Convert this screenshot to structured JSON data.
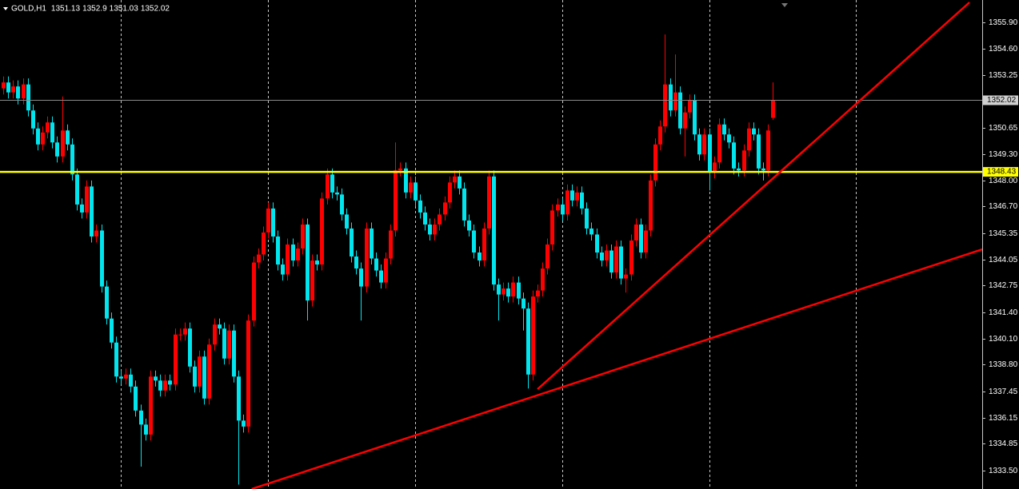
{
  "chart_data": {
    "type": "candlestick",
    "symbol": "GOLD,H1",
    "open": [
      1352.6,
      1352.9,
      1352.4,
      1352.7,
      1352.1,
      1352.8,
      1351.5,
      1350.6,
      1349.8,
      1350.4,
      1350.9,
      1349.9,
      1349.2,
      1350.5,
      1349.8,
      1348.3,
      1346.8,
      1346.4,
      1347.7,
      1345.2,
      1345.5,
      1342.7,
      1341.1,
      1339.9,
      1338.2,
      1338.1,
      1338.3,
      1337.7,
      1336.5,
      1335.8,
      1335.3,
      1338.2,
      1338.0,
      1337.5,
      1338.0,
      1337.8,
      1340.3,
      1340.3,
      1340.6,
      1338.7,
      1337.7,
      1339.2,
      1337.1,
      1339.8,
      1340.8,
      1340.6,
      1339.1,
      1340.5,
      1338.2,
      1336.0,
      1335.7,
      1341.0,
      1343.9,
      1344.3,
      1345.4,
      1346.6,
      1345.2,
      1343.8,
      1343.3,
      1344.8,
      1344.0,
      1344.6,
      1345.8,
      1342.0,
      1344.0,
      1343.8,
      1347.1,
      1348.3,
      1347.4,
      1347.3,
      1346.3,
      1345.6,
      1344.2,
      1343.6,
      1342.7,
      1345.6,
      1344.1,
      1343.5,
      1342.9,
      1344.1,
      1345.5,
      1348.5,
      1348.6,
      1347.4,
      1347.9,
      1347.0,
      1346.4,
      1345.8,
      1345.3,
      1345.8,
      1346.3,
      1346.9,
      1347.9,
      1348.2,
      1347.6,
      1346.0,
      1345.5,
      1344.4,
      1344.0,
      1345.6,
      1348.2,
      1342.8,
      1342.3,
      1342.6,
      1342.2,
      1342.9,
      1342.1,
      1341.6,
      1338.3,
      1342.2,
      1342.5,
      1343.6,
      1344.8,
      1346.5,
      1346.8,
      1346.3,
      1347.5,
      1347.0,
      1347.4,
      1346.6,
      1345.6,
      1345.3,
      1344.4,
      1344.0,
      1344.5,
      1343.4,
      1344.7,
      1343.1,
      1343.3,
      1345.0,
      1345.8,
      1344.4,
      1345.5,
      1348.0,
      1349.8,
      1350.7,
      1352.8,
      1351.5,
      1352.4,
      1350.6,
      1351.4,
      1352.0,
      1350.3,
      1349.3,
      1350.3,
      1348.4,
      1348.9,
      1350.8,
      1350.3,
      1349.9,
      1348.6,
      1348.5,
      1349.5,
      1350.6,
      1350.3,
      1348.6,
      1348.5,
      1351.13
    ],
    "high": [
      1353.2,
      1353.2,
      1353.0,
      1353.0,
      1353.1,
      1353.1,
      1351.8,
      1350.9,
      1350.7,
      1351.2,
      1351.2,
      1350.2,
      1352.2,
      1350.8,
      1350.1,
      1348.6,
      1347.1,
      1348.0,
      1348.0,
      1345.8,
      1345.8,
      1343.0,
      1341.4,
      1340.2,
      1338.5,
      1338.6,
      1338.6,
      1338.0,
      1336.8,
      1336.1,
      1338.5,
      1338.5,
      1338.3,
      1338.3,
      1338.3,
      1340.6,
      1340.6,
      1340.9,
      1340.9,
      1339.0,
      1339.5,
      1339.5,
      1340.1,
      1341.1,
      1341.1,
      1340.9,
      1340.8,
      1340.8,
      1338.5,
      1336.3,
      1341.3,
      1344.2,
      1344.6,
      1345.7,
      1346.9,
      1346.9,
      1345.5,
      1344.1,
      1345.1,
      1345.1,
      1344.9,
      1346.1,
      1346.1,
      1344.3,
      1344.3,
      1347.4,
      1348.6,
      1348.6,
      1347.7,
      1347.6,
      1346.6,
      1345.9,
      1344.5,
      1343.9,
      1345.9,
      1345.9,
      1344.4,
      1343.8,
      1344.4,
      1345.8,
      1349.9,
      1348.9,
      1348.9,
      1348.2,
      1348.2,
      1347.3,
      1346.7,
      1346.1,
      1346.1,
      1346.6,
      1347.2,
      1348.2,
      1348.5,
      1348.5,
      1347.9,
      1346.3,
      1345.8,
      1344.7,
      1345.9,
      1348.5,
      1348.5,
      1343.1,
      1342.9,
      1342.9,
      1343.2,
      1343.2,
      1342.4,
      1341.9,
      1342.5,
      1342.8,
      1343.9,
      1345.1,
      1346.8,
      1347.1,
      1347.1,
      1347.8,
      1347.8,
      1347.7,
      1347.7,
      1346.9,
      1345.9,
      1345.6,
      1344.7,
      1344.8,
      1344.8,
      1345.0,
      1345.0,
      1343.6,
      1345.3,
      1346.1,
      1346.1,
      1345.8,
      1348.3,
      1350.1,
      1351.0,
      1355.3,
      1353.1,
      1354.3,
      1352.7,
      1351.7,
      1352.3,
      1352.3,
      1350.6,
      1350.6,
      1350.6,
      1349.2,
      1351.1,
      1351.1,
      1350.6,
      1350.2,
      1348.9,
      1349.8,
      1350.9,
      1350.9,
      1350.6,
      1348.9,
      1350.8,
      1352.9
    ],
    "low": [
      1352.3,
      1352.1,
      1352.1,
      1351.8,
      1351.8,
      1351.2,
      1350.3,
      1349.5,
      1349.5,
      1350.1,
      1349.6,
      1348.9,
      1348.9,
      1349.5,
      1348.0,
      1346.5,
      1346.1,
      1346.1,
      1344.9,
      1344.9,
      1342.4,
      1340.8,
      1339.6,
      1337.9,
      1337.8,
      1337.8,
      1337.4,
      1336.2,
      1333.7,
      1335.0,
      1335.0,
      1337.7,
      1337.2,
      1337.2,
      1337.5,
      1337.5,
      1340.0,
      1340.0,
      1338.4,
      1337.4,
      1337.4,
      1336.8,
      1336.8,
      1339.5,
      1340.3,
      1338.8,
      1338.8,
      1337.9,
      1332.8,
      1335.4,
      1335.4,
      1340.7,
      1343.6,
      1344.0,
      1345.1,
      1344.9,
      1343.5,
      1343.0,
      1343.0,
      1343.7,
      1343.7,
      1344.3,
      1341.0,
      1341.7,
      1343.5,
      1343.5,
      1346.8,
      1347.1,
      1347.0,
      1346.0,
      1345.3,
      1343.9,
      1343.3,
      1341.0,
      1342.4,
      1343.8,
      1343.2,
      1342.6,
      1342.6,
      1343.8,
      1345.2,
      1348.2,
      1347.1,
      1347.1,
      1346.7,
      1346.1,
      1345.5,
      1345.0,
      1345.0,
      1345.5,
      1346.0,
      1346.6,
      1347.6,
      1347.3,
      1345.7,
      1345.2,
      1344.1,
      1343.7,
      1343.7,
      1345.3,
      1342.5,
      1341.0,
      1342.0,
      1341.9,
      1341.9,
      1341.8,
      1340.5,
      1337.6,
      1338.0,
      1341.9,
      1342.2,
      1343.3,
      1344.5,
      1346.2,
      1346.0,
      1346.0,
      1346.7,
      1346.7,
      1346.3,
      1345.3,
      1345.0,
      1344.1,
      1343.7,
      1343.7,
      1343.1,
      1343.1,
      1342.8,
      1342.4,
      1343.0,
      1344.7,
      1344.1,
      1344.1,
      1345.2,
      1347.7,
      1349.5,
      1350.4,
      1351.2,
      1351.2,
      1350.3,
      1349.2,
      1351.1,
      1350.0,
      1349.0,
      1349.0,
      1347.5,
      1348.1,
      1348.6,
      1350.0,
      1349.6,
      1348.3,
      1348.2,
      1348.2,
      1349.2,
      1350.0,
      1348.3,
      1348.0,
      1348.2,
      1351.03
    ],
    "close": [
      1352.9,
      1352.4,
      1352.7,
      1352.1,
      1352.8,
      1351.5,
      1350.6,
      1349.8,
      1350.4,
      1350.9,
      1349.9,
      1349.2,
      1350.5,
      1349.8,
      1348.3,
      1346.8,
      1346.4,
      1347.7,
      1345.2,
      1345.5,
      1342.7,
      1341.1,
      1339.9,
      1338.2,
      1338.1,
      1338.3,
      1337.7,
      1336.5,
      1335.8,
      1335.3,
      1338.2,
      1338.0,
      1337.5,
      1338.0,
      1337.8,
      1340.3,
      1340.3,
      1340.6,
      1338.7,
      1337.7,
      1339.2,
      1337.1,
      1339.8,
      1340.8,
      1340.6,
      1339.1,
      1340.5,
      1338.2,
      1336.0,
      1335.7,
      1341.0,
      1343.9,
      1344.3,
      1345.4,
      1346.6,
      1345.2,
      1343.8,
      1343.3,
      1344.8,
      1344.0,
      1344.6,
      1345.8,
      1342.0,
      1344.0,
      1343.8,
      1347.1,
      1348.3,
      1347.4,
      1347.3,
      1346.3,
      1345.6,
      1344.2,
      1343.6,
      1342.7,
      1345.6,
      1344.1,
      1343.5,
      1342.9,
      1344.1,
      1345.5,
      1348.5,
      1348.6,
      1347.4,
      1347.9,
      1347.0,
      1346.4,
      1345.8,
      1345.3,
      1345.8,
      1346.3,
      1346.9,
      1347.9,
      1348.2,
      1347.6,
      1346.0,
      1345.5,
      1344.4,
      1344.0,
      1345.6,
      1348.2,
      1342.8,
      1342.3,
      1342.6,
      1342.2,
      1342.9,
      1342.1,
      1341.6,
      1338.3,
      1342.2,
      1342.5,
      1343.6,
      1344.8,
      1346.5,
      1346.8,
      1346.3,
      1347.5,
      1347.0,
      1347.4,
      1346.6,
      1345.6,
      1345.3,
      1344.4,
      1344.0,
      1344.5,
      1343.4,
      1344.7,
      1343.1,
      1343.3,
      1345.0,
      1345.8,
      1344.4,
      1345.5,
      1348.0,
      1349.8,
      1350.7,
      1352.8,
      1351.5,
      1352.4,
      1350.6,
      1351.4,
      1352.0,
      1350.3,
      1349.3,
      1350.3,
      1348.4,
      1348.9,
      1350.8,
      1350.3,
      1349.9,
      1348.6,
      1348.5,
      1349.5,
      1350.6,
      1350.3,
      1348.6,
      1348.5,
      1350.5,
      1352.02
    ],
    "up_color": "#ff0000",
    "down_color": "#00e5ee",
    "xlim": [
      -0.65,
      199.7
    ],
    "ylim": [
      1332.58,
      1357.02
    ],
    "yticks": [
      {
        "value": 1355.9,
        "label": "1355.90"
      },
      {
        "value": 1354.6,
        "label": "1354.60"
      },
      1353.25,
      {
        "value": 1350.65,
        "label": "1350.65"
      },
      {
        "value": 1349.3,
        "label": "1349.30"
      },
      {
        "value": 1348,
        "label": "1348.00"
      },
      {
        "value": 1346.7,
        "label": "1346.70"
      },
      1345.35,
      1344.05,
      1342.75,
      {
        "value": 1341.4,
        "label": "1341.40"
      },
      {
        "value": 1340.1,
        "label": "1340.10"
      },
      {
        "value": 1338.8,
        "label": "1338.80"
      },
      1337.45,
      1336.15,
      1334.85,
      {
        "value": 1333.5,
        "label": "1333.50"
      }
    ],
    "xgrid": [
      24,
      54,
      84,
      114,
      144,
      174
    ],
    "hlines": [
      {
        "value": 1348.43,
        "color": "#ffff00"
      }
    ],
    "trendlines": [
      {
        "x": [
          109,
          197.1
        ],
        "y": [
          1337.57,
          1356.9
        ],
        "color": "#ff0000"
      },
      {
        "x": [
          50.7,
          199.7
        ],
        "y": [
          1332.58,
          1344.56
        ],
        "color": "#ff0000"
      }
    ]
  }
}
